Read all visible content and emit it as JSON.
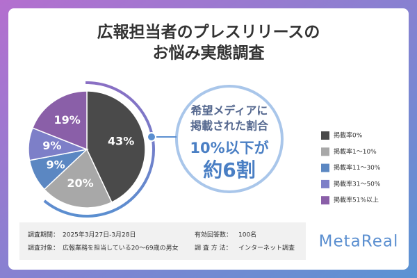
{
  "chart_data": {
    "type": "pie",
    "title": [
      "広報担当者のプレスリリースの",
      "お悩み実態調査"
    ],
    "categories": [
      "掲載率0%",
      "掲載率1〜10%",
      "掲載率11〜30%",
      "掲載率31〜50%",
      "掲載率51%以上"
    ],
    "values": [
      43,
      20,
      9,
      9,
      19
    ],
    "value_labels": [
      "43%",
      "20%",
      "9%",
      "9%",
      "19%"
    ],
    "colors": [
      "#4a4a4a",
      "#a8a8a8",
      "#5b87c2",
      "#7d7fc8",
      "#8a5fa8"
    ],
    "legend": "right"
  },
  "callout": {
    "lines": [
      "希望メディアに",
      "掲載された割合"
    ],
    "highlight": [
      "10%以下が",
      "約6割"
    ]
  },
  "survey": {
    "period_label": "調査期間：",
    "period": "2025年3月27日-3月28日",
    "target_label": "調査対象：",
    "target": "広報業務を担当している20〜69歳の男女",
    "responses_label": "有効回答数：",
    "responses": "100名",
    "method_label": "調 査 方 法：",
    "method": "インターネット調査"
  },
  "logo": "MetaReal"
}
